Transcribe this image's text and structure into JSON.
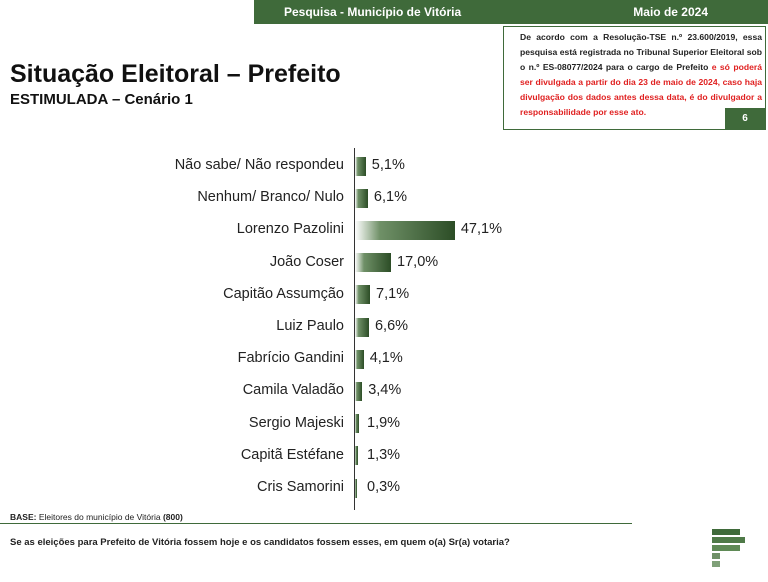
{
  "header": {
    "survey_label": "Pesquisa - Município de Vitória",
    "date_label": "Maio de 2024",
    "title": "Situação Eleitoral – Prefeito",
    "subtitle": "ESTIMULADA – Cenário 1"
  },
  "legal": {
    "text_black": "De acordo com a Resolução-TSE n.º 23.600/2019, essa pesquisa está registrada no Tribunal Superior Eleitoral sob o n.º ES-08077/2024 para o cargo de Prefeito ",
    "text_red": "e só poderá ser divulgada a partir do dia 23 de maio de 2024, caso haja divulgação dos dados antes dessa data, é do divulgador a responsabilidade por esse ato.",
    "page_number": "6"
  },
  "chart_data": {
    "type": "bar",
    "orientation": "horizontal",
    "categories": [
      "Não sabe/ Não respondeu",
      "Nenhum/ Branco/ Nulo",
      "Lorenzo Pazolini",
      "João Coser",
      "Capitão Assumção",
      "Luiz Paulo",
      "Fabrício Gandini",
      "Camila Valadão",
      "Sergio Majeski",
      "Capitã Estéfane",
      "Cris Samorini"
    ],
    "values": [
      5.1,
      6.1,
      47.1,
      17.0,
      7.1,
      6.6,
      4.1,
      3.4,
      1.9,
      1.3,
      0.3
    ],
    "value_labels": [
      "5,1%",
      "6,1%",
      "47,1%",
      "17,0%",
      "7,1%",
      "6,6%",
      "4,1%",
      "3,4%",
      "1,9%",
      "1,3%",
      "0,3%"
    ],
    "xlim": [
      0,
      100
    ]
  },
  "footer": {
    "base_label": "BASE:",
    "base_text": "Eleitores do município de Vitória",
    "base_count": "(800)",
    "question": "Se as eleições para Prefeito de Vitória fossem hoje e os candidatos fossem esses, em quem o(a) Sr(a) votaria?"
  },
  "colors": {
    "brand_green": "#3f6a3a",
    "bar_dark": "#2c4d26",
    "legal_red": "#e02020"
  },
  "icons": {
    "logo": "brand-logo-icon"
  }
}
